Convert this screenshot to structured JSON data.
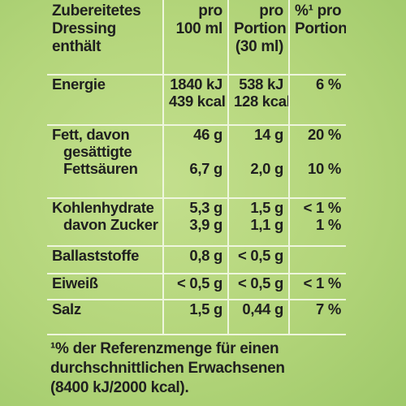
{
  "header": {
    "col1": [
      "Zubereitetes",
      "Dressing",
      "enthält"
    ],
    "col2": [
      "pro",
      "100 ml"
    ],
    "col3": [
      "pro",
      "Portion",
      "(30 ml)"
    ],
    "col4": [
      "%¹ pro",
      "Portion"
    ]
  },
  "rows": {
    "energie": {
      "label": "Energie",
      "v100": [
        "1840 kJ",
        "439 kcal"
      ],
      "vportion": [
        "538 kJ",
        "128 kcal"
      ],
      "pct": "6 %"
    },
    "fett": {
      "label": "Fett, davon",
      "sub": [
        "gesättigte",
        "Fettsäuren"
      ],
      "v100": [
        "46 g",
        "6,7 g"
      ],
      "vportion": [
        "14 g",
        "2,0 g"
      ],
      "pct": [
        "20 %",
        "10 %"
      ]
    },
    "kohlenhydrate": {
      "label": "Kohlenhydrate",
      "sub": "davon Zucker",
      "v100": [
        "5,3 g",
        "3,9 g"
      ],
      "vportion": [
        "1,5 g",
        "1,1 g"
      ],
      "pct": [
        "< 1 %",
        "1 %"
      ]
    },
    "ballaststoffe": {
      "label": "Ballaststoffe",
      "v100": "0,8 g",
      "vportion": "< 0,5 g",
      "pct": ""
    },
    "eiweiss": {
      "label": "Eiweiß",
      "v100": "< 0,5 g",
      "vportion": "< 0,5 g",
      "pct": "< 1 %"
    },
    "salz": {
      "label": "Salz",
      "v100": "1,5 g",
      "vportion": "0,44 g",
      "pct": "7 %"
    }
  },
  "footnote": [
    "¹% der Referenzmenge für einen",
    "durchschnittlichen Erwachsenen",
    "(8400 kJ/2000 kcal)."
  ]
}
